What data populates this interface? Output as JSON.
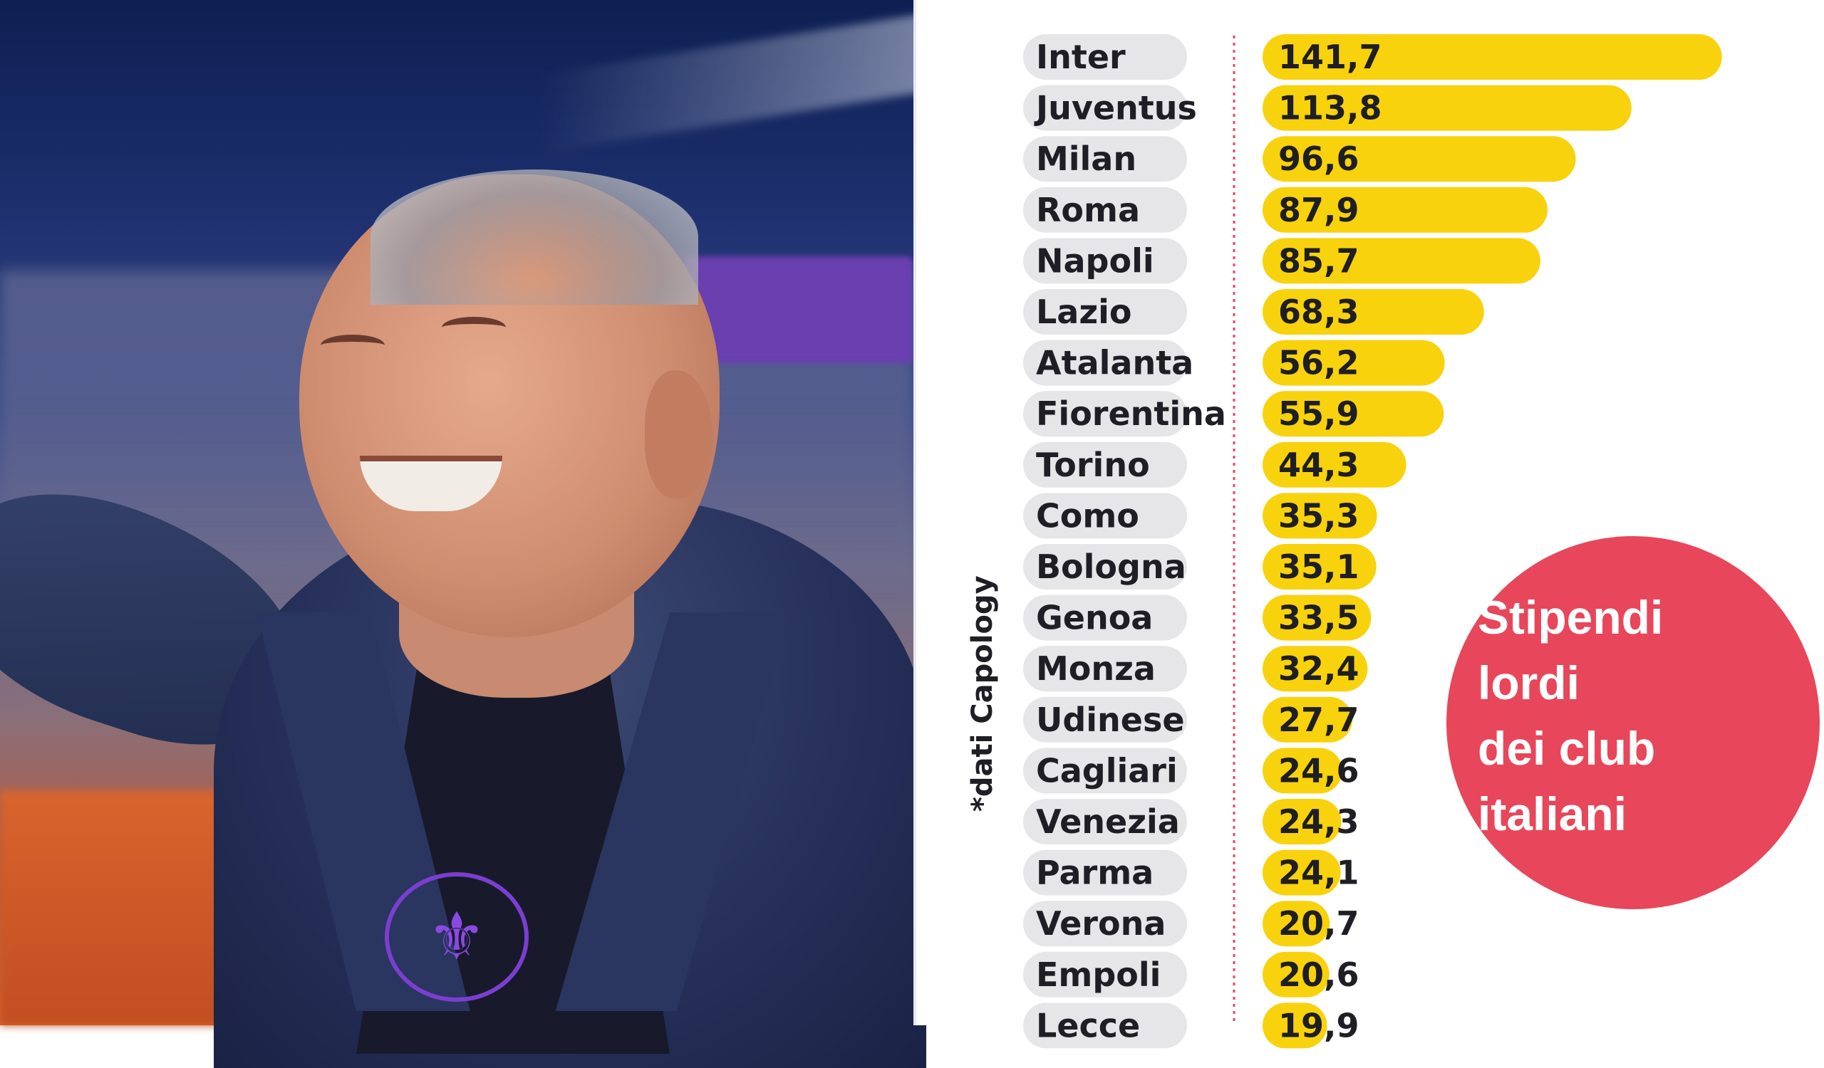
{
  "chart_data": {
    "type": "bar",
    "orientation": "horizontal",
    "categories": [
      "Inter",
      "Juventus",
      "Milan",
      "Roma",
      "Napoli",
      "Lazio",
      "Atalanta",
      "Fiorentina",
      "Torino",
      "Como",
      "Bologna",
      "Genoa",
      "Monza",
      "Udinese",
      "Cagliari",
      "Venezia",
      "Parma",
      "Verona",
      "Empoli",
      "Lecce"
    ],
    "values": [
      141.7,
      113.8,
      96.6,
      87.9,
      85.7,
      68.3,
      56.2,
      55.9,
      44.3,
      35.3,
      35.1,
      33.5,
      32.4,
      27.7,
      24.6,
      24.3,
      24.1,
      20.7,
      20.6,
      19.9
    ],
    "value_labels": [
      "141,7",
      "113,8",
      "96,6",
      "87,9",
      "85,7",
      "68,3",
      "56,2",
      "55,9",
      "44,3",
      "35,3",
      "35,1",
      "33,5",
      "32,4",
      "27,7",
      "24,6",
      "24,3",
      "24,1",
      "20,7",
      "20,6",
      "19,9"
    ],
    "title": "Stipendi lordi dei club italiani",
    "title_lines": [
      "Stipendi",
      "lordi",
      "dei club",
      "italiani"
    ],
    "source": "*dati Capology",
    "xlabel": "",
    "ylabel": "",
    "grid": false,
    "legend": "none",
    "colors": {
      "bar": "#f8d20c",
      "label_pill": "#e6e6e8",
      "callout": "#e8465a",
      "divider": "#e8465a",
      "text": "#1e1e24"
    }
  }
}
